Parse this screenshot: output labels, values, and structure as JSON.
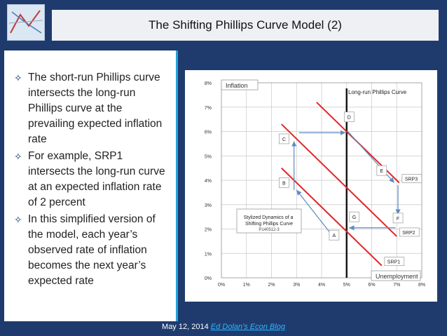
{
  "slide": {
    "title": "The Shifting Phillips Curve Model (2)",
    "bullets": [
      "The short-run Phillips curve intersects the long-run Phillips curve at the prevailing expected inflation rate",
      "For example, SRP1 intersects the long-run curve at an expected inflation rate of 2 percent",
      "In this simplified version of the model, each year’s observed rate of inflation becomes the next year’s expected rate"
    ],
    "footer_date": "May 12, 2014",
    "footer_link": "Ed Dolan’s Econ Blog"
  },
  "diagram": {
    "y_ticks": [
      "0%",
      "1%",
      "2%",
      "3%",
      "4%",
      "5%",
      "6%",
      "7%",
      "8%"
    ],
    "x_ticks": [
      "0%",
      "1%",
      "2%",
      "3%",
      "4%",
      "5%",
      "6%",
      "7%",
      "8%"
    ],
    "y_axis_label": "Inflation",
    "x_axis_label": "Unemployment",
    "lrpc_label": "Long-run Phillips Curve",
    "lrpc_x": 5,
    "box_title": "Stylized Dynamics of a Shifting Phillips Curve",
    "box_code": "P140512-3",
    "curves": [
      {
        "label": "SRP1",
        "from": [
          2.4,
          4.5
        ],
        "to": [
          6.4,
          0.5
        ]
      },
      {
        "label": "SRP2",
        "from": [
          2.4,
          6.3
        ],
        "to": [
          7.0,
          1.7
        ]
      },
      {
        "label": "SRP3",
        "from": [
          3.8,
          7.2
        ],
        "to": [
          7.1,
          3.9
        ]
      }
    ],
    "points": [
      {
        "label": "A",
        "x": 4.5,
        "y": 1.75
      },
      {
        "label": "B",
        "x": 2.5,
        "y": 3.9
      },
      {
        "label": "C",
        "x": 2.5,
        "y": 5.7
      },
      {
        "label": "D",
        "x": 5.1,
        "y": 6.6
      },
      {
        "label": "E",
        "x": 6.4,
        "y": 4.4
      },
      {
        "label": "F",
        "x": 7.05,
        "y": 2.45
      },
      {
        "label": "G",
        "x": 5.3,
        "y": 2.5
      }
    ]
  }
}
